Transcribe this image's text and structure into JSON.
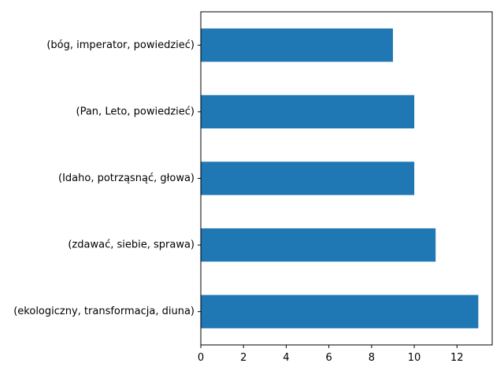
{
  "chart_data": {
    "type": "bar",
    "orientation": "horizontal",
    "categories": [
      "(bóg, imperator, powiedzieć)",
      "(Pan, Leto, powiedzieć)",
      "(Idaho, potrząsnąć, głowa)",
      "(zdawać, siebie, sprawa)",
      "(ekologiczny, transformacja, diuna)"
    ],
    "values": [
      9,
      10,
      10,
      11,
      13
    ],
    "xlim": [
      0,
      13.65
    ],
    "xticks": [
      0,
      2,
      4,
      6,
      8,
      10,
      12
    ],
    "xlabel": "",
    "ylabel": "",
    "title": "",
    "grid": false,
    "bar_color": "#1f77b4"
  }
}
